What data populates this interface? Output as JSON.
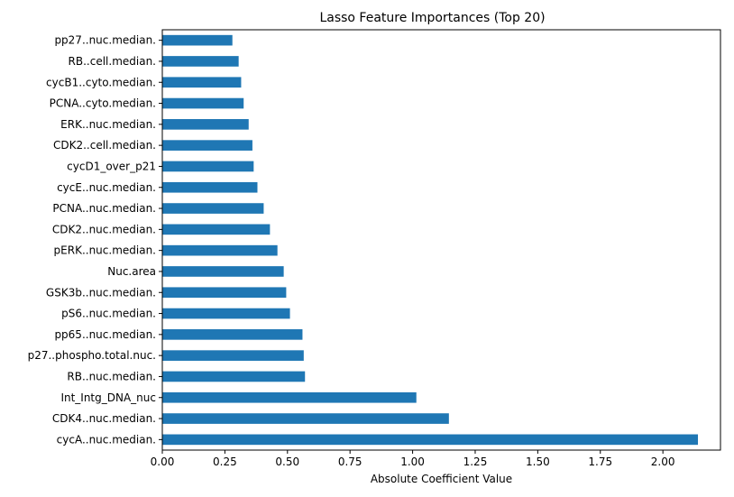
{
  "chart_data": {
    "type": "bar",
    "orientation": "horizontal",
    "title": "Lasso Feature Importances (Top 20)",
    "xlabel": "Absolute Coefficient Value",
    "ylabel": "",
    "xlim": [
      0,
      2.23
    ],
    "xticks": [
      "0.00",
      "0.25",
      "0.50",
      "0.75",
      "1.00",
      "1.25",
      "1.50",
      "1.75",
      "2.00"
    ],
    "grid": false,
    "bar_color": "#1f77b4",
    "categories": [
      "cycA..nuc.median.",
      "CDK4..nuc.median.",
      "Int_Intg_DNA_nuc",
      "RB..nuc.median.",
      "p27..phospho.total.nuc.",
      "pp65..nuc.median.",
      "pS6..nuc.median.",
      "GSK3b..nuc.median.",
      "Nuc.area",
      "pERK..nuc.median.",
      "CDK2..nuc.median.",
      "PCNA..nuc.median.",
      "cycE..nuc.median.",
      "cycD1_over_p21",
      "CDK2..cell.median.",
      "ERK..nuc.median.",
      "PCNA..cyto.median.",
      "cycB1..cyto.median.",
      "RB..cell.median.",
      "pp27..nuc.median."
    ],
    "values": [
      2.14,
      1.145,
      1.015,
      0.57,
      0.565,
      0.56,
      0.51,
      0.495,
      0.485,
      0.46,
      0.43,
      0.405,
      0.38,
      0.365,
      0.36,
      0.345,
      0.325,
      0.315,
      0.305,
      0.28
    ]
  }
}
